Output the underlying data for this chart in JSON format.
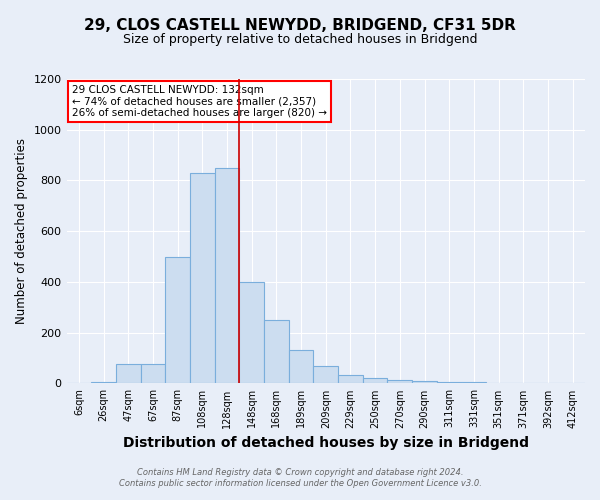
{
  "title": "29, CLOS CASTELL NEWYDD, BRIDGEND, CF31 5DR",
  "subtitle": "Size of property relative to detached houses in Bridgend",
  "xlabel": "Distribution of detached houses by size in Bridgend",
  "ylabel": "Number of detached properties",
  "footer_line1": "Contains HM Land Registry data © Crown copyright and database right 2024.",
  "footer_line2": "Contains public sector information licensed under the Open Government Licence v3.0.",
  "annotation_line1": "29 CLOS CASTELL NEWYDD: 132sqm",
  "annotation_line2": "← 74% of detached houses are smaller (2,357)",
  "annotation_line3": "26% of semi-detached houses are larger (820) →",
  "bin_labels": [
    "6sqm",
    "26sqm",
    "47sqm",
    "67sqm",
    "87sqm",
    "108sqm",
    "128sqm",
    "148sqm",
    "168sqm",
    "189sqm",
    "209sqm",
    "229sqm",
    "250sqm",
    "270sqm",
    "290sqm",
    "311sqm",
    "331sqm",
    "351sqm",
    "371sqm",
    "392sqm",
    "412sqm"
  ],
  "bar_values": [
    2,
    4,
    75,
    75,
    500,
    830,
    850,
    400,
    250,
    130,
    70,
    35,
    20,
    14,
    8,
    5,
    5,
    3,
    3,
    3,
    2
  ],
  "bar_color": "#ccddf0",
  "bar_edge_color": "#7aaedc",
  "vline_x": 6.5,
  "vline_color": "#cc0000",
  "ylim": [
    0,
    1200
  ],
  "yticks": [
    0,
    200,
    400,
    600,
    800,
    1000,
    1200
  ],
  "background_color": "#e8eef8",
  "grid_color": "#ffffff",
  "title_fontsize": 11,
  "subtitle_fontsize": 9,
  "xlabel_fontsize": 10,
  "ylabel_fontsize": 8.5,
  "tick_fontsize": 7,
  "ann_fontsize": 7.5
}
